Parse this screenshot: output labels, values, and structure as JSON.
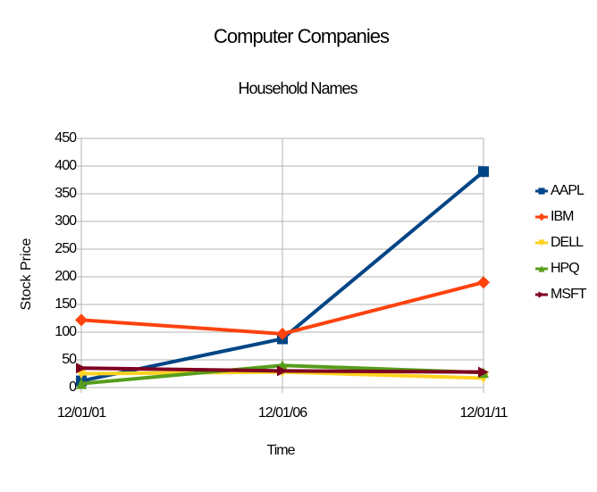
{
  "chart_data": {
    "type": "line",
    "title": "Computer Companies",
    "subtitle": "Household Names",
    "x_label": "Time",
    "y_label": "Stock Price",
    "categories": [
      "12/01/01",
      "12/01/06",
      "12/01/11"
    ],
    "series": [
      {
        "name": "AAPL",
        "color": "#004586",
        "values": [
          12,
          88,
          390
        ]
      },
      {
        "name": "IBM",
        "color": "#ff420e",
        "values": [
          122,
          97,
          190
        ]
      },
      {
        "name": "DELL",
        "color": "#ffd320",
        "values": [
          25,
          28,
          17
        ]
      },
      {
        "name": "HPQ",
        "color": "#579d1c",
        "values": [
          7,
          40,
          27
        ]
      },
      {
        "name": "MSFT",
        "color": "#7e0021",
        "values": [
          35,
          30,
          28
        ]
      }
    ],
    "ylim": [
      0,
      450
    ],
    "yticks": [
      0,
      50,
      100,
      150,
      200,
      250,
      300,
      350,
      400,
      450
    ],
    "grid": true,
    "legend": "right"
  }
}
